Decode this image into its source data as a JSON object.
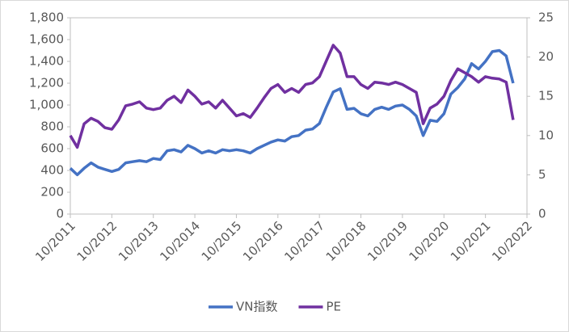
{
  "chart_data": {
    "type": "line",
    "x": [
      "10/2011",
      "12/2011",
      "02/2012",
      "04/2012",
      "06/2012",
      "08/2012",
      "10/2012",
      "12/2012",
      "02/2013",
      "04/2013",
      "06/2013",
      "08/2013",
      "10/2013",
      "12/2013",
      "02/2014",
      "04/2014",
      "06/2014",
      "08/2014",
      "10/2014",
      "12/2014",
      "02/2015",
      "04/2015",
      "06/2015",
      "08/2015",
      "10/2015",
      "12/2015",
      "02/2016",
      "04/2016",
      "06/2016",
      "08/2016",
      "10/2016",
      "12/2016",
      "02/2017",
      "04/2017",
      "06/2017",
      "08/2017",
      "10/2017",
      "12/2017",
      "02/2018",
      "04/2018",
      "06/2018",
      "08/2018",
      "10/2018",
      "12/2018",
      "02/2019",
      "04/2019",
      "06/2019",
      "08/2019",
      "10/2019",
      "12/2019",
      "02/2020",
      "04/2020",
      "06/2020",
      "08/2020",
      "10/2020",
      "12/2020",
      "02/2021",
      "04/2021",
      "06/2021",
      "08/2021",
      "10/2021",
      "12/2021",
      "02/2022",
      "04/2022",
      "06/2022"
    ],
    "series": [
      {
        "name": "VN指数",
        "color": "#4472c4",
        "values": [
          420,
          360,
          420,
          470,
          430,
          410,
          390,
          410,
          470,
          480,
          490,
          480,
          510,
          500,
          580,
          590,
          570,
          630,
          600,
          560,
          580,
          560,
          590,
          580,
          590,
          580,
          560,
          600,
          630,
          660,
          680,
          670,
          710,
          720,
          770,
          780,
          830,
          980,
          1120,
          1150,
          960,
          970,
          920,
          900,
          960,
          980,
          960,
          990,
          1000,
          960,
          900,
          720,
          860,
          850,
          920,
          1100,
          1160,
          1240,
          1380,
          1330,
          1400,
          1490,
          1500,
          1450,
          1200
        ]
      },
      {
        "name": "PE",
        "color": "#7030a0",
        "axis": "y2",
        "values": [
          10,
          8.5,
          11.5,
          12.2,
          11.8,
          11,
          10.8,
          12,
          13.8,
          14,
          14.3,
          13.5,
          13.3,
          13.5,
          14.5,
          15,
          14.2,
          15.8,
          15,
          14,
          14.3,
          13.5,
          14.5,
          13.5,
          12.5,
          12.8,
          12.3,
          13.5,
          14.8,
          16,
          16.5,
          15.5,
          16,
          15.5,
          16.5,
          16.7,
          17.5,
          19.5,
          21.5,
          20.5,
          17.5,
          17.5,
          16.5,
          16,
          16.8,
          16.7,
          16.5,
          16.8,
          16.5,
          16,
          15.5,
          11.5,
          13.5,
          14,
          15,
          17,
          18.5,
          18,
          17.5,
          16.8,
          17.5,
          17.3,
          17.2,
          16.8,
          12
        ]
      }
    ],
    "xlim": [
      "10/2011",
      "10/2022"
    ],
    "xticks": [
      "10/2011",
      "10/2012",
      "10/2013",
      "10/2014",
      "10/2015",
      "10/2016",
      "10/2017",
      "10/2018",
      "10/2019",
      "10/2020",
      "10/2021",
      "10/2022"
    ],
    "ylim": [
      0,
      1800
    ],
    "yticks": [
      0,
      200,
      400,
      600,
      800,
      {
        "value": 1000,
        "label": "1,000"
      },
      {
        "value": 1200,
        "label": "1,200"
      },
      {
        "value": 1400,
        "label": "1,400"
      },
      {
        "value": 1600,
        "label": "1,600"
      },
      {
        "value": 1800,
        "label": "1,800"
      }
    ],
    "y2lim": [
      0,
      25
    ],
    "y2ticks": [
      0,
      5,
      10,
      15,
      20,
      25
    ],
    "legend": "bottom"
  }
}
